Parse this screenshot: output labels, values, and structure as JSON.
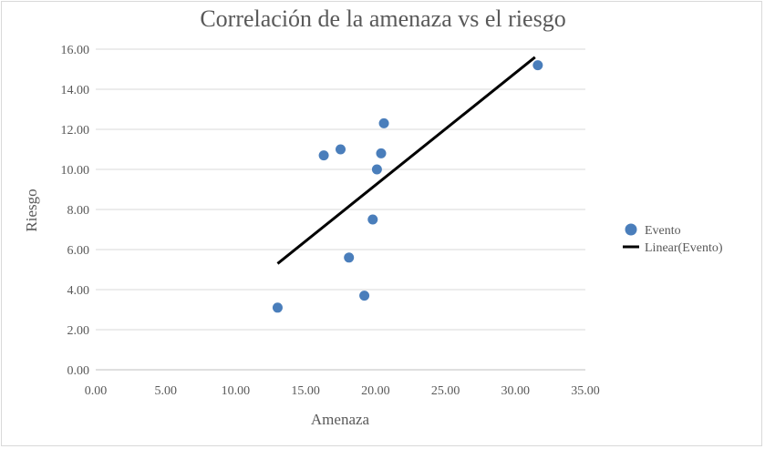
{
  "chart_data": {
    "type": "scatter",
    "title": "Correlación de la amenaza vs el riesgo",
    "xlabel": "Amenaza",
    "ylabel": "Riesgo",
    "xlim": [
      0,
      35
    ],
    "ylim": [
      0,
      16
    ],
    "x_ticks": [
      "0.00",
      "5.00",
      "10.00",
      "15.00",
      "20.00",
      "25.00",
      "30.00",
      "35.00"
    ],
    "y_ticks": [
      "0.00",
      "2.00",
      "4.00",
      "6.00",
      "8.00",
      "10.00",
      "12.00",
      "14.00",
      "16.00"
    ],
    "grid": "horizontal",
    "legend_position": "right",
    "series": [
      {
        "name": "Evento",
        "color": "#4a7ebb",
        "points": [
          {
            "x": 13.0,
            "y": 3.1
          },
          {
            "x": 16.3,
            "y": 10.7
          },
          {
            "x": 17.5,
            "y": 11.0
          },
          {
            "x": 18.1,
            "y": 5.6
          },
          {
            "x": 19.2,
            "y": 3.7
          },
          {
            "x": 19.8,
            "y": 7.5
          },
          {
            "x": 20.1,
            "y": 10.0
          },
          {
            "x": 20.4,
            "y": 10.8
          },
          {
            "x": 20.6,
            "y": 12.3
          },
          {
            "x": 31.6,
            "y": 15.2
          }
        ]
      }
    ],
    "trendline": {
      "name": "Linear(Evento)",
      "type": "linear",
      "color": "#000000",
      "x_start": 13.0,
      "y_start": 5.3,
      "x_end": 31.4,
      "y_end": 15.6
    }
  }
}
